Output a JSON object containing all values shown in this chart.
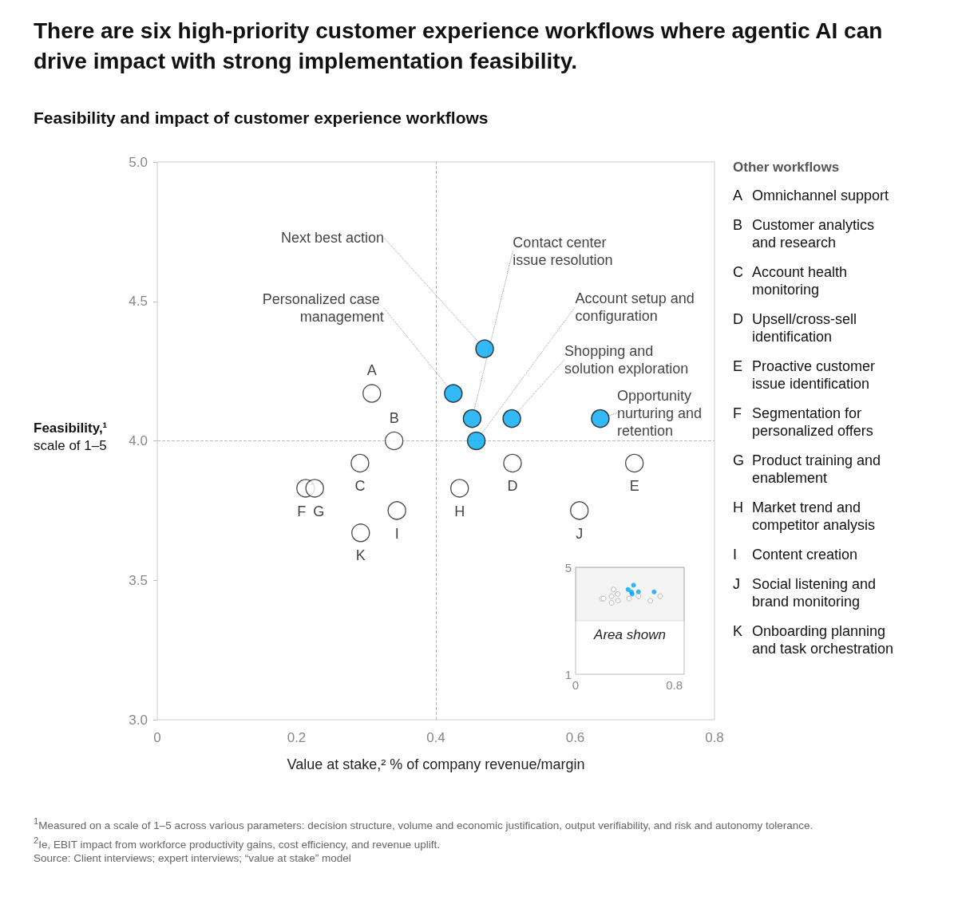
{
  "chart_data": [
    {
      "type": "scatter",
      "title": "There are six high-priority customer experience workflows where agentic AI can drive impact with strong implementation feasibility.",
      "subtitle": "Feasibility and impact of customer experience workflows",
      "xlabel": "Value at stake,² % of company revenue/margin",
      "ylabel": "Feasibility,¹\nscale of 1–5",
      "legend_title": "Other workflows",
      "xlim": [
        0,
        0.8
      ],
      "xticks": [
        0,
        0.2,
        0.4,
        0.6,
        0.8
      ],
      "ylim": [
        3,
        5
      ],
      "yticks": [
        {
          "value": 3,
          "label": "3.0"
        },
        {
          "value": 3.5,
          "label": "3.5"
        },
        {
          "value": 4,
          "label": "4.0"
        },
        {
          "value": 4.5,
          "label": "4.5"
        },
        {
          "value": 5,
          "label": "5.0"
        }
      ],
      "grid": false,
      "marker": "circle",
      "ref_lines": [
        {
          "axis": "x",
          "value": 0.4,
          "label": null,
          "color": "#bbbbbb",
          "line_style": "dashed"
        },
        {
          "axis": "y",
          "value": 4,
          "label": null,
          "color": "#bbbbbb",
          "line_style": "dashed"
        }
      ],
      "series": [
        {
          "color": "#00a9f4",
          "x": [
            0.47,
            0.425,
            0.452,
            0.458,
            0.509,
            0.636
          ],
          "values": [
            4.33,
            4.17,
            4.08,
            4.0,
            4.08,
            4.08
          ],
          "value_labels": [
            "Next best action",
            "Personalized case management",
            "Contact center issue resolution",
            "Account setup and configuration",
            "Shopping and solution exploration",
            "Opportunity nurturing and retention"
          ]
        },
        {
          "color": "#1a1a1a",
          "x": [
            0.308,
            0.34,
            0.291,
            0.51,
            0.685,
            0.213,
            0.226,
            0.434,
            0.344,
            0.606,
            0.292
          ],
          "values": [
            4.17,
            4.0,
            3.92,
            3.92,
            3.92,
            3.83,
            3.83,
            3.83,
            3.75,
            3.75,
            3.67
          ],
          "value_labels": [
            "A",
            "B",
            "C",
            "D",
            "E",
            "F",
            "G",
            "H",
            "I",
            "J",
            "K"
          ]
        }
      ],
      "annotations": [
        "A Omnichannel support",
        "B Customer analytics and research",
        "C Account health monitoring",
        "D Upsell/cross-sell identification",
        "E Proactive customer issue identification",
        "F Segmentation for personalized offers",
        "G Product training and enablement",
        "H Market trend and competitor analysis",
        "I Content creation",
        "J Social listening and brand monitoring",
        "K Onboarding planning and task orchestration",
        "$^{1}$Measured on a scale of 1–5 across various parameters: decision structure, volume and economic justification, output verifiability, and risk and autonomy tolerance.",
        "$^{2}$Ie, EBIT impact from workforce productivity gains, cost efficiency, and revenue uplift.",
        "Source: Client interviews; expert interviews; “value at stake” model"
      ]
    },
    {
      "type": "scatter",
      "xlim": [
        0,
        0.88
      ],
      "xticks": [
        0,
        0.8
      ],
      "ylim": [
        1,
        5
      ],
      "yticks": [
        1,
        5
      ],
      "grid": false,
      "marker": "circle",
      "bands": [
        {
          "axis": "y",
          "from": 3,
          "to": 5,
          "label": "Area shown",
          "color": "#333333"
        }
      ],
      "series": [
        {
          "color": "#00a9f4",
          "x": [
            0.47,
            0.425,
            0.452,
            0.458,
            0.509,
            0.636
          ],
          "values": [
            4.33,
            4.17,
            4.08,
            4.0,
            4.08,
            4.08
          ]
        },
        {
          "color": "#aaaaaa",
          "x": [
            0.308,
            0.34,
            0.291,
            0.51,
            0.685,
            0.213,
            0.226,
            0.434,
            0.344,
            0.606,
            0.292
          ],
          "values": [
            4.17,
            4.0,
            3.92,
            3.92,
            3.92,
            3.83,
            3.83,
            3.83,
            3.75,
            3.75,
            3.67
          ]
        }
      ]
    }
  ]
}
